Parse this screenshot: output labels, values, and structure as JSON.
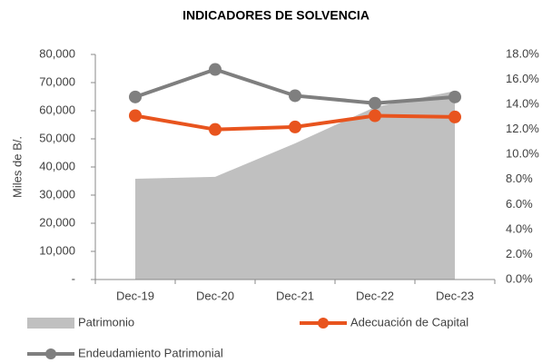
{
  "chart_data": {
    "type": "combo",
    "title": "INDICADORES DE SOLVENCIA",
    "ylabel": "Miles de B/.",
    "categories": [
      "Dec-19",
      "Dec-20",
      "Dec-21",
      "Dec-22",
      "Dec-23"
    ],
    "series": [
      {
        "name": "Patrimonio",
        "type": "area",
        "color": "#c0c0c0",
        "axis": "y",
        "values": [
          35800,
          36500,
          48400,
          61300,
          67000
        ]
      },
      {
        "name": "Adecuación de Capital",
        "type": "line",
        "color": "#e8541e",
        "axis": "y2",
        "values": [
          13.1,
          12.0,
          12.2,
          13.1,
          13.0
        ]
      },
      {
        "name": "Endeudamiento Patrimonial",
        "type": "line",
        "color": "#7f7f7f",
        "axis": "y2",
        "values": [
          14.6,
          16.8,
          14.7,
          14.1,
          14.6
        ]
      }
    ],
    "ylim": [
      0,
      80000
    ],
    "yticks": [
      {
        "value": 0,
        "label": "-"
      },
      {
        "value": 10000,
        "label": "10,000"
      },
      {
        "value": 20000,
        "label": "20,000"
      },
      {
        "value": 30000,
        "label": "30,000"
      },
      {
        "value": 40000,
        "label": "40,000"
      },
      {
        "value": 50000,
        "label": "50,000"
      },
      {
        "value": 60000,
        "label": "60,000"
      },
      {
        "value": 70000,
        "label": "70,000"
      },
      {
        "value": 80000,
        "label": "80,000"
      }
    ],
    "y2lim": [
      0,
      18
    ],
    "y2ticks": [
      {
        "value": 0,
        "label": "0.0%"
      },
      {
        "value": 2,
        "label": "2.0%"
      },
      {
        "value": 4,
        "label": "4.0%"
      },
      {
        "value": 6,
        "label": "6.0%"
      },
      {
        "value": 8,
        "label": "8.0%"
      },
      {
        "value": 10,
        "label": "10.0%"
      },
      {
        "value": 12,
        "label": "12.0%"
      },
      {
        "value": 14,
        "label": "14.0%"
      },
      {
        "value": 16,
        "label": "16.0%"
      },
      {
        "value": 18,
        "label": "18.0%"
      }
    ]
  }
}
